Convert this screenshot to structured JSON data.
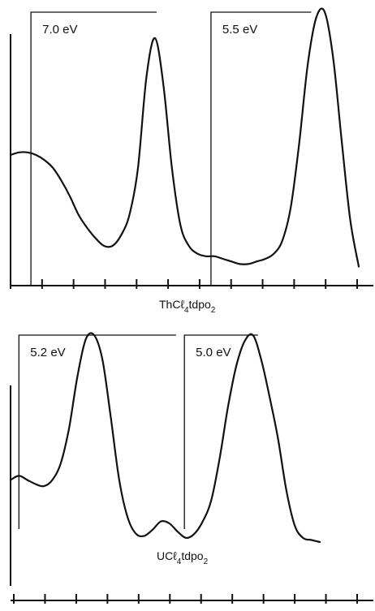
{
  "chart_data": [
    {
      "type": "line",
      "title": "ThCℓ4tdpo2",
      "title_main": "ThCℓ",
      "title_sub1": "4",
      "title_mid": "tdpo",
      "title_sub2": "2",
      "xlabel": "",
      "ylabel": "",
      "grid": false,
      "x_ticks_count": 12,
      "series": [
        {
          "x": [
            0,
            0.5,
            1,
            1.5,
            2,
            2.5,
            3,
            3.5,
            4,
            4.5,
            5,
            5.5,
            6,
            6.5,
            7,
            7.5,
            8,
            8.5,
            9,
            9.5,
            10,
            10.5,
            11,
            11.5,
            12,
            12.5,
            13,
            13.5,
            14,
            14.5,
            15,
            15.5,
            16,
            16.5,
            17,
            17.5,
            18,
            18.5,
            19,
            19.5,
            20,
            20.5
          ],
          "y": [
            45,
            46,
            46,
            45,
            43,
            40,
            35,
            29,
            22,
            17,
            13,
            10,
            10,
            14,
            22,
            40,
            75,
            90,
            72,
            40,
            18,
            10,
            7,
            6,
            6,
            5,
            4,
            3,
            3,
            4,
            5,
            7,
            12,
            25,
            50,
            80,
            98,
            100,
            82,
            50,
            20,
            2
          ]
        }
      ],
      "brackets": [
        {
          "label": "7.0 eV",
          "x_start": 1.2,
          "x_end": 8.6
        },
        {
          "label": "5.5 eV",
          "x_start": 11.8,
          "x_end": 17.7
        }
      ]
    },
    {
      "type": "line",
      "title": "UCℓ4tdpo2",
      "title_main": "UCℓ",
      "title_sub1": "4",
      "title_mid": "tdpo",
      "title_sub2": "2",
      "xlabel": "",
      "ylabel": "",
      "grid": false,
      "x_ticks_count": 12,
      "series": [
        {
          "x": [
            0,
            0.5,
            1,
            1.5,
            2,
            2.5,
            3,
            3.5,
            4,
            4.5,
            5,
            5.5,
            6,
            6.5,
            7,
            7.5,
            8,
            8.5,
            9,
            9.5,
            10,
            10.5,
            11,
            11.5,
            12,
            12.5,
            13,
            13.5,
            14,
            14.5,
            15,
            15.5,
            16,
            16.5,
            17,
            17.5,
            18,
            18.5
          ],
          "y": [
            30,
            32,
            30,
            28,
            27,
            30,
            38,
            55,
            80,
            98,
            100,
            88,
            60,
            30,
            12,
            4,
            3,
            6,
            10,
            9,
            5,
            2,
            4,
            10,
            20,
            40,
            65,
            85,
            97,
            100,
            88,
            70,
            50,
            25,
            8,
            2,
            1,
            0
          ]
        }
      ],
      "brackets": [
        {
          "label": "5.2 eV",
          "x_start": 0.5,
          "x_end": 9.9
        },
        {
          "label": "5.0 eV",
          "x_start": 10.4,
          "x_end": 14.8
        }
      ]
    }
  ]
}
